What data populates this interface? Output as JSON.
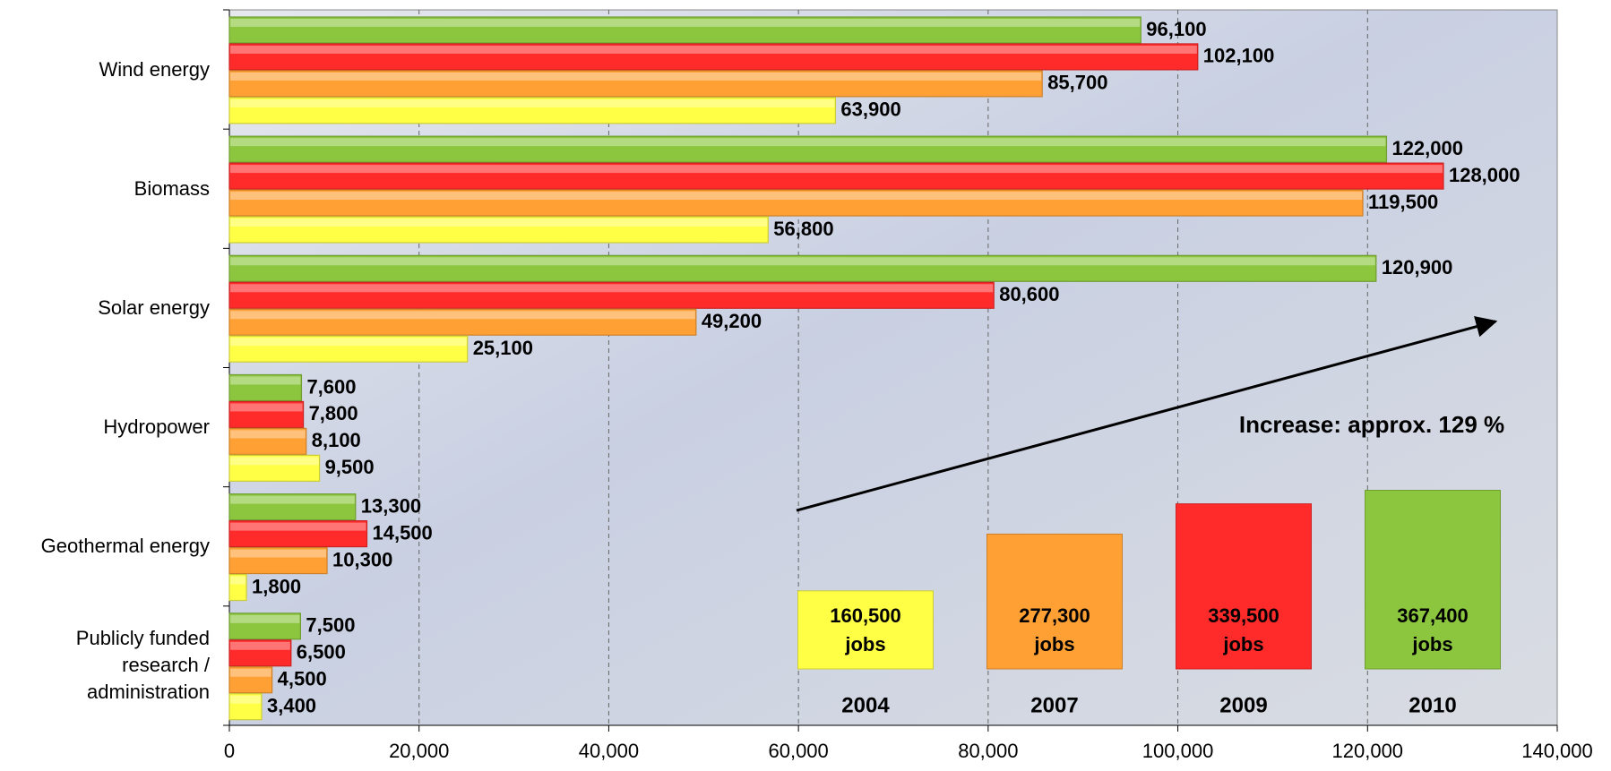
{
  "chart_data": {
    "type": "bar",
    "orientation": "horizontal",
    "categories": [
      "Wind energy",
      "Biomass",
      "Solar energy",
      "Hydropower",
      "Geothermal energy",
      "Publicly funded research / administration"
    ],
    "series": [
      {
        "name": "2010",
        "color": "#8cc63f",
        "values": [
          96100,
          122000,
          120900,
          7600,
          13300,
          7500
        ],
        "value_labels": [
          "96,100",
          "122,000",
          "120,900",
          "7,600",
          "13,300",
          "7,500"
        ],
        "total": 367400,
        "total_label": "367,400 jobs"
      },
      {
        "name": "2009",
        "color": "#ff2b2b",
        "values": [
          102100,
          128000,
          80600,
          7800,
          14500,
          6500
        ],
        "value_labels": [
          "102,100",
          "128,000",
          "80,600",
          "7,800",
          "14,500",
          "6,500"
        ],
        "total": 339500,
        "total_label": "339,500 jobs"
      },
      {
        "name": "2007",
        "color": "#ffa035",
        "values": [
          85700,
          119500,
          49200,
          8100,
          10300,
          4500
        ],
        "value_labels": [
          "85,700",
          "119,500",
          "49,200",
          "8,100",
          "10,300",
          "4,500"
        ],
        "total": 277300,
        "total_label": "277,300 jobs"
      },
      {
        "name": "2004",
        "color": "#ffff45",
        "values": [
          63900,
          56800,
          25100,
          9500,
          1800,
          3400
        ],
        "value_labels": [
          "63,900",
          "56,800",
          "25,100",
          "9,500",
          "1,800",
          "3,400"
        ],
        "total": 160500,
        "total_label": "160,500 jobs"
      }
    ],
    "xlim": [
      0,
      140000
    ],
    "xticks": [
      0,
      {
        "value": 20000,
        "label": "20,000"
      },
      {
        "value": 40000,
        "label": "40,000"
      },
      {
        "value": 60000,
        "label": "60,000"
      },
      {
        "value": 80000,
        "label": "80,000"
      },
      {
        "value": 100000,
        "label": "100,000"
      },
      {
        "value": 120000,
        "label": "120,000"
      },
      {
        "value": 140000,
        "label": "140,000"
      }
    ],
    "grid": true,
    "annotation": "Increase: approx. 129 %"
  }
}
